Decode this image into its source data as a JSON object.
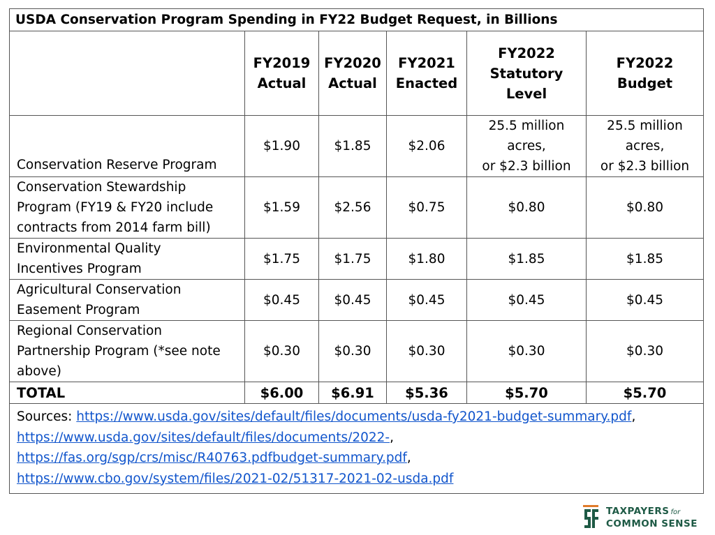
{
  "table": {
    "title": "USDA Conservation Program Spending in FY22 Budget Request, in Billions",
    "headers": [
      [
        "FY2019",
        "Actual"
      ],
      [
        "FY2020",
        "Actual"
      ],
      [
        "FY2021",
        "Enacted"
      ],
      [
        "FY2022",
        "Statutory",
        "Level"
      ],
      [
        "FY2022",
        "Budget"
      ]
    ],
    "rows": [
      {
        "label": "Conservation Reserve Program",
        "values": [
          "$1.90",
          "$1.85",
          "$2.06"
        ],
        "fy22_statutory": [
          "25.5 million",
          "acres,",
          "or $2.3 billion"
        ],
        "fy22_budget": [
          "25.5 million",
          "acres,",
          "or $2.3 billion"
        ]
      },
      {
        "label_lines": [
          "Conservation Stewardship",
          "Program (FY19 & FY20 include",
          "contracts from 2014 farm bill)"
        ],
        "values": [
          "$1.59",
          "$2.56",
          "$0.75",
          "$0.80",
          "$0.80"
        ]
      },
      {
        "label_lines": [
          "Environmental Quality",
          "Incentives Program"
        ],
        "values": [
          "$1.75",
          "$1.75",
          "$1.80",
          "$1.85",
          "$1.85"
        ]
      },
      {
        "label_lines": [
          "Agricultural Conservation",
          "Easement Program"
        ],
        "values": [
          "$0.45",
          "$0.45",
          "$0.45",
          "$0.45",
          "$0.45"
        ]
      },
      {
        "label_lines": [
          "Regional Conservation",
          "Partnership Program (*see note",
          "above)"
        ],
        "values": [
          "$0.30",
          "$0.30",
          "$0.30",
          "$0.30",
          "$0.30"
        ]
      }
    ],
    "total": {
      "label": "TOTAL",
      "values": [
        "$6.00",
        "$6.91",
        "$5.36",
        "$5.70",
        "$5.70"
      ]
    },
    "sources": {
      "prefix": "Sources: ",
      "links": [
        "https://www.usda.gov/sites/default/files/documents/usda-fy2021-budget-summary.pdf",
        "https://www.usda.gov/sites/default/files/documents/2022-",
        "https://fas.org/sgp/crs/misc/R40763.pdfbudget-summary.pdf",
        "https://www.cbo.gov/system/files/2021-02/51317-2021-02-usda.pdf"
      ],
      "separator": ","
    }
  },
  "logo": {
    "line1": "TAXPAYERS",
    "for": "for",
    "line2": "COMMON SENSE",
    "colors": {
      "green": "#1e5a45",
      "orange": "#e07b2a"
    }
  }
}
